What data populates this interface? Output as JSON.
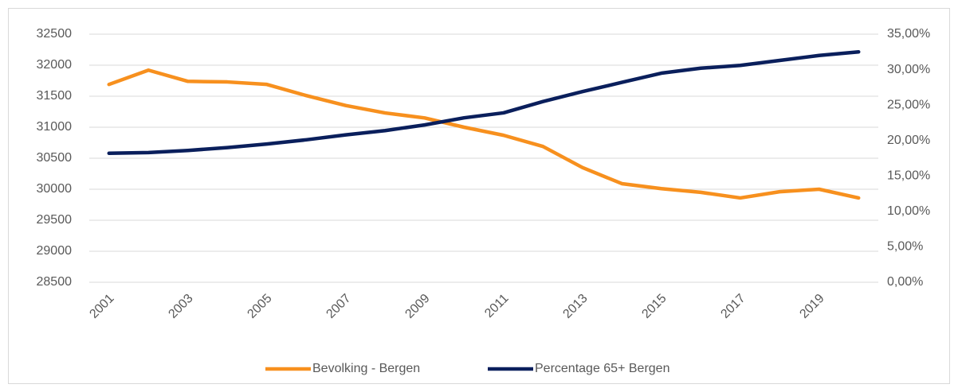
{
  "chart_data": {
    "type": "line",
    "categories": [
      "2001",
      null,
      "2003",
      null,
      "2005",
      null,
      "2007",
      null,
      "2009",
      null,
      "2011",
      null,
      "2013",
      null,
      "2015",
      null,
      "2017",
      null,
      "2019",
      null
    ],
    "series": [
      {
        "name": "Bevolking - Bergen",
        "color": "#f7901e",
        "values": [
          31690,
          31920,
          31740,
          31730,
          31690,
          31510,
          31350,
          31230,
          31150,
          31000,
          30870,
          30690,
          30350,
          30090,
          30010,
          29950,
          29860,
          29960,
          30000,
          29860
        ]
      },
      {
        "name": "Percentage 65+ Bergen",
        "color": "#0a1f5c",
        "axis": "y2",
        "values": [
          18.2,
          18.3,
          18.6,
          19.0,
          19.5,
          20.1,
          20.8,
          21.4,
          22.2,
          23.2,
          23.9,
          25.5,
          26.9,
          28.2,
          29.5,
          30.2,
          30.6,
          31.3,
          32.0,
          32.5
        ]
      }
    ],
    "ylim": [
      28500,
      32500
    ],
    "yticks": [
      28500,
      29000,
      29500,
      30000,
      30500,
      31000,
      31500,
      32000,
      32500
    ],
    "y2lim": [
      0,
      35
    ],
    "y2ticks": [
      {
        "value": 0,
        "label": "0,00%"
      },
      {
        "value": 5,
        "label": "5,00%"
      },
      {
        "value": 10,
        "label": "10,00%"
      },
      {
        "value": 15,
        "label": "15,00%"
      },
      {
        "value": 20,
        "label": "20,00%"
      },
      {
        "value": 25,
        "label": "25,00%"
      },
      {
        "value": 30,
        "label": "30,00%"
      },
      {
        "value": 35,
        "label": "35,00%"
      }
    ],
    "grid": true,
    "legend": "bottom"
  }
}
